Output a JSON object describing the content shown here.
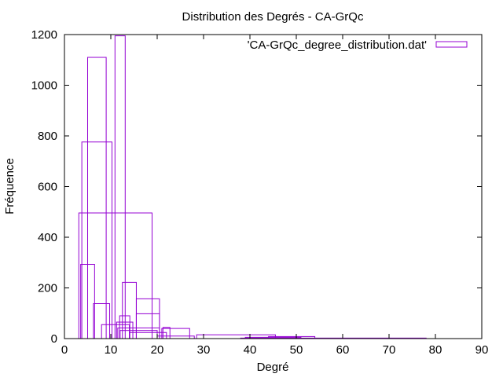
{
  "chart_data": {
    "type": "bar",
    "title": "Distribution des Degrés - CA-GrQc",
    "xlabel": "Degré",
    "ylabel": "Fréquence",
    "xlim": [
      0,
      90
    ],
    "ylim": [
      0,
      1200
    ],
    "xticks": [
      0,
      10,
      20,
      30,
      40,
      50,
      60,
      70,
      80,
      90
    ],
    "yticks": [
      0,
      200,
      400,
      600,
      800,
      1000,
      1200
    ],
    "grid": false,
    "legend_position": "top-right",
    "series": [
      {
        "name": "'CA-GrQc_degree_distribution.dat'",
        "color": "#9400d3",
        "boxes": [
          {
            "x": 5,
            "width": 3.0,
            "value": 293
          },
          {
            "x": 7,
            "width": 4.0,
            "value": 1110
          },
          {
            "x": 7,
            "width": 6.5,
            "value": 776
          },
          {
            "x": 8,
            "width": 3.5,
            "value": 138
          },
          {
            "x": 11,
            "width": 6.0,
            "value": 55
          },
          {
            "x": 11,
            "width": 15.8,
            "value": 496
          },
          {
            "x": 12,
            "width": 2.2,
            "value": 1195
          },
          {
            "x": 13,
            "width": 2.2,
            "value": 90
          },
          {
            "x": 13,
            "width": 3.5,
            "value": 65
          },
          {
            "x": 14,
            "width": 3.0,
            "value": 222
          },
          {
            "x": 18,
            "width": 5.0,
            "value": 157
          },
          {
            "x": 18,
            "width": 5.0,
            "value": 98
          },
          {
            "x": 16,
            "width": 9.0,
            "value": 42
          },
          {
            "x": 16,
            "width": 8.0,
            "value": 32
          },
          {
            "x": 22,
            "width": 1.5,
            "value": 44
          },
          {
            "x": 24,
            "width": 6.0,
            "value": 40
          },
          {
            "x": 18,
            "width": 8.0,
            "value": 24
          },
          {
            "x": 24,
            "width": 8.0,
            "value": 10
          },
          {
            "x": 37,
            "width": 17.0,
            "value": 15
          },
          {
            "x": 49,
            "width": 10.0,
            "value": 8
          },
          {
            "x": 45,
            "width": 12.0,
            "value": 5
          },
          {
            "x": 58,
            "width": 40.0,
            "value": 2
          }
        ]
      }
    ]
  }
}
